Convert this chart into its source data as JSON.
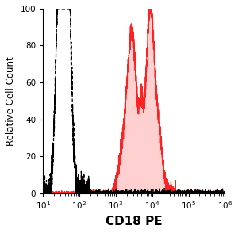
{
  "title": "",
  "xlabel": "CD18 PE",
  "ylabel": "Relative Cell Count",
  "xlim_log": [
    10.0,
    1000000.0
  ],
  "ylim": [
    0,
    100
  ],
  "yticks": [
    0,
    20,
    40,
    60,
    80,
    100
  ],
  "background_color": "#ffffff",
  "plot_bg_color": "#ffffff",
  "dashed_color": "#000000",
  "filled_color": "#ff2222",
  "filled_face_color": "#ffaaaa",
  "filled_alpha": 0.55,
  "xlabel_fontsize": 11,
  "ylabel_fontsize": 8.5,
  "tick_fontsize": 7.5,
  "black_peak_log": 1.58,
  "black_peak_amp": 100,
  "red_peak1_log": 3.45,
  "red_peak1_amp": 85,
  "red_peak2_log": 3.95,
  "red_peak2_amp": 100
}
